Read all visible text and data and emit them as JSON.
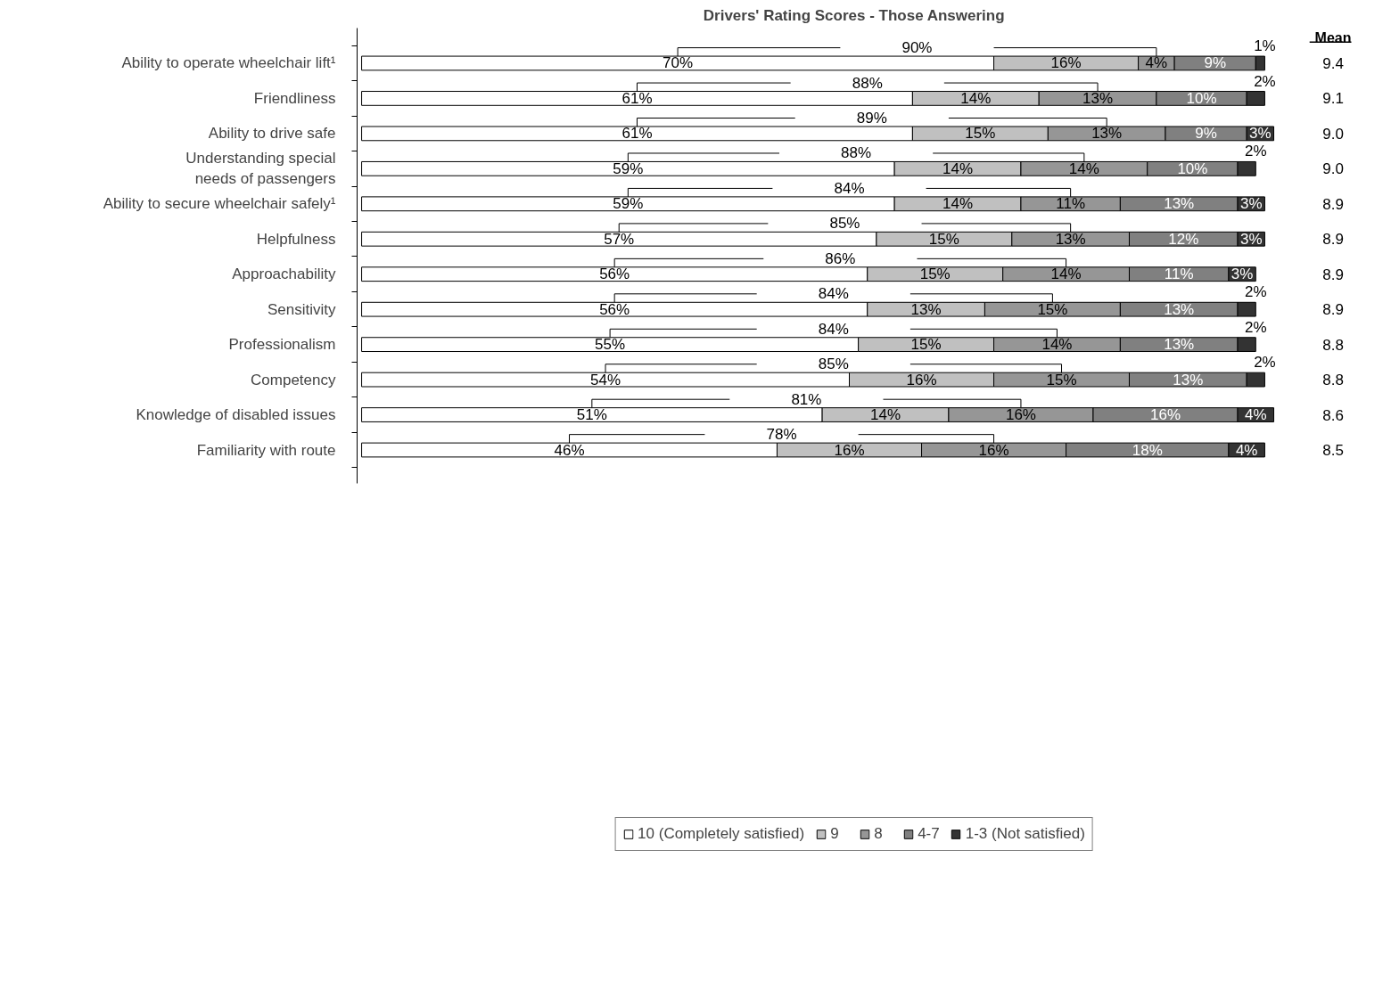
{
  "chart_data": {
    "type": "bar",
    "orientation": "horizontal",
    "stacked": true,
    "title": "Drivers' Rating Scores - Those Answering",
    "categories": [
      "Ability to operate wheelchair lift¹",
      "Friendliness",
      "Ability to drive safe",
      "Understanding special needs of passengers",
      "Ability to secure wheelchair safely¹",
      "Helpfulness",
      "Approachability",
      "Sensitivity",
      "Professionalism",
      "Competency",
      "Knowledge of disabled issues",
      "Familiarity with route"
    ],
    "series": [
      {
        "name": "10 (Completely satisfied)",
        "color": "#ffffff",
        "values": [
          70,
          61,
          61,
          59,
          59,
          57,
          56,
          56,
          55,
          54,
          51,
          46
        ],
        "value_labels": [
          "70%",
          "61%",
          "61%",
          "59%",
          "59%",
          "57%",
          "56%",
          "56%",
          "55%",
          "54%",
          "51%",
          "46%"
        ]
      },
      {
        "name": "9",
        "color": "#c0c0c0",
        "values": [
          16,
          14,
          15,
          14,
          14,
          15,
          15,
          13,
          15,
          16,
          14,
          16
        ],
        "value_labels": [
          "16%",
          "14%",
          "15%",
          "14%",
          "14%",
          "15%",
          "15%",
          "13%",
          "15%",
          "16%",
          "14%",
          "16%"
        ]
      },
      {
        "name": "8",
        "color": "#969696",
        "values": [
          4,
          13,
          13,
          14,
          11,
          13,
          14,
          15,
          14,
          15,
          16,
          16
        ],
        "value_labels": [
          "4%",
          "13%",
          "13%",
          "14%",
          "11%",
          "13%",
          "14%",
          "15%",
          "14%",
          "15%",
          "16%",
          "16%"
        ]
      },
      {
        "name": "4-7",
        "color": "#808080",
        "values": [
          9,
          10,
          9,
          10,
          13,
          12,
          11,
          13,
          13,
          13,
          16,
          18
        ],
        "value_labels": [
          "9%",
          "10%",
          "9%",
          "10%",
          "13%",
          "12%",
          "11%",
          "13%",
          "13%",
          "13%",
          "16%",
          "18%"
        ]
      },
      {
        "name": "1-3 (Not satisfied)",
        "color": "#333333",
        "values": [
          1,
          2,
          3,
          2,
          3,
          3,
          3,
          2,
          2,
          2,
          4,
          4
        ],
        "value_labels": [
          "1%",
          "2%",
          "3%",
          "2%",
          "3%",
          "3%",
          "3%",
          "2%",
          "2%",
          "2%",
          "4%",
          "4%"
        ]
      }
    ],
    "tick_labels": "y",
    "grid": false,
    "legend": "bottom",
    "annotations": [
      "Mean",
      "90%",
      "88%",
      "89%",
      "88%",
      "84%",
      "85%",
      "86%",
      "84%",
      "84%",
      "85%",
      "81%",
      "78%",
      "9.4",
      "9.1",
      "9.0",
      "9.0",
      "8.9",
      "8.9",
      "8.9",
      "8.9",
      "8.8",
      "8.8",
      "8.6",
      "8.5"
    ]
  }
}
